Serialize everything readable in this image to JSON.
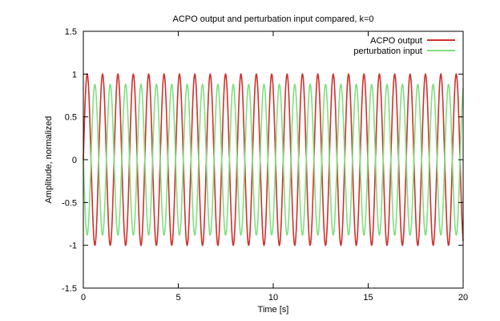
{
  "chart_data": {
    "type": "line",
    "title": "ACPO output and perturbation input compared, k=0",
    "xlabel": "Time [s]",
    "ylabel": "Amplitude, normalized",
    "xlim": [
      0,
      20
    ],
    "ylim": [
      -1.5,
      1.5
    ],
    "xticks": [
      0,
      5,
      10,
      15,
      20
    ],
    "yticks": [
      -1.5,
      -1,
      -0.5,
      0,
      0.5,
      1,
      1.5
    ],
    "x_tick_labels": [
      "0",
      "5",
      "10",
      "15",
      "20"
    ],
    "y_tick_labels": [
      "-1.5",
      "-1",
      "-0.5",
      "0",
      "0.5",
      "1",
      "1.5"
    ],
    "grid": false,
    "legend_position": "top-right",
    "series": [
      {
        "name": "ACPO output",
        "color": "#d0312d",
        "function": "sine",
        "amplitude": 1.0,
        "frequency_hz": 1.235,
        "phase": 0
      },
      {
        "name": "perturbation input",
        "color": "#7fe07f",
        "function": "sine",
        "amplitude": 0.88,
        "frequency_hz": 1.235,
        "phase": 3.14159
      }
    ]
  }
}
